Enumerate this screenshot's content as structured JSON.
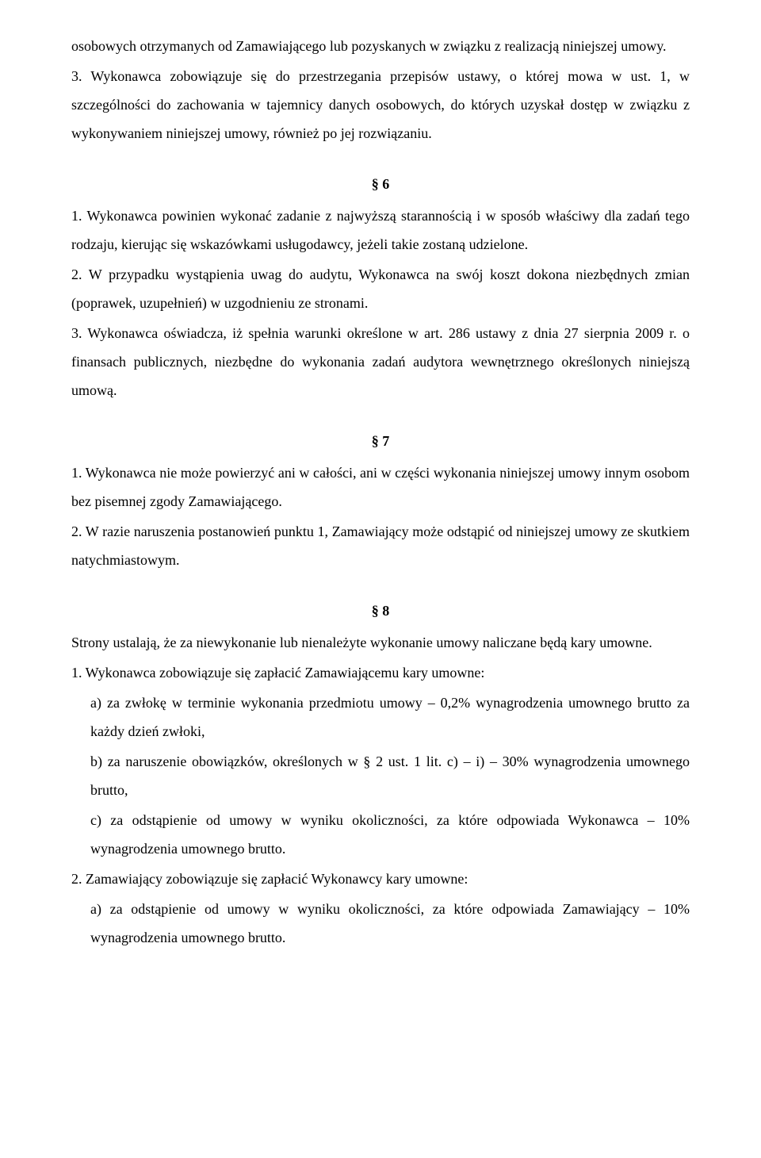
{
  "p1": "osobowych otrzymanych od Zamawiającego lub pozyskanych w związku z realizacją niniejszej umowy.",
  "p2": "3. Wykonawca zobowiązuje się do przestrzegania przepisów ustawy, o której mowa w ust. 1, w szczególności do zachowania w tajemnicy danych osobowych, do których uzyskał dostęp w związku z wykonywaniem niniejszej umowy, również po jej rozwiązaniu.",
  "s6": "§ 6",
  "p3": "1. Wykonawca powinien wykonać zadanie z najwyższą starannością i w sposób właściwy dla zadań tego rodzaju, kierując się wskazówkami usługodawcy, jeżeli takie zostaną udzielone.",
  "p4": "2. W przypadku wystąpienia uwag do audytu, Wykonawca na swój koszt dokona niezbędnych zmian (poprawek, uzupełnień) w uzgodnieniu ze stronami.",
  "p5": "3. Wykonawca oświadcza, iż spełnia warunki określone w art. 286 ustawy z dnia 27 sierpnia 2009 r. o finansach publicznych, niezbędne do wykonania zadań audytora wewnętrznego określonych niniejszą umową.",
  "s7": "§ 7",
  "p6": "1. Wykonawca nie może powierzyć ani w całości, ani w części wykonania niniejszej umowy innym osobom bez pisemnej zgody Zamawiającego.",
  "p7": "2. W razie naruszenia postanowień punktu 1, Zamawiający może odstąpić od niniejszej umowy ze skutkiem natychmiastowym.",
  "s8": "§ 8",
  "p8": "Strony ustalają, że za niewykonanie lub nienależyte wykonanie umowy naliczane będą kary umowne.",
  "p9": "1. Wykonawca zobowiązuje się zapłacić Zamawiającemu kary umowne:",
  "p9a": "a) za zwłokę w terminie wykonania przedmiotu umowy – 0,2% wynagrodzenia umownego brutto za każdy dzień zwłoki,",
  "p9b": "b) za naruszenie obowiązków, określonych w § 2 ust. 1 lit. c) – i) – 30% wynagrodzenia umownego brutto,",
  "p9c": "c) za odstąpienie od umowy w wyniku okoliczności, za które odpowiada Wykonawca – 10% wynagrodzenia umownego brutto.",
  "p10": "2. Zamawiający zobowiązuje się zapłacić Wykonawcy kary umowne:",
  "p10a": "a) za odstąpienie od umowy w wyniku okoliczności, za które odpowiada Zamawiający – 10%  wynagrodzenia umownego brutto."
}
